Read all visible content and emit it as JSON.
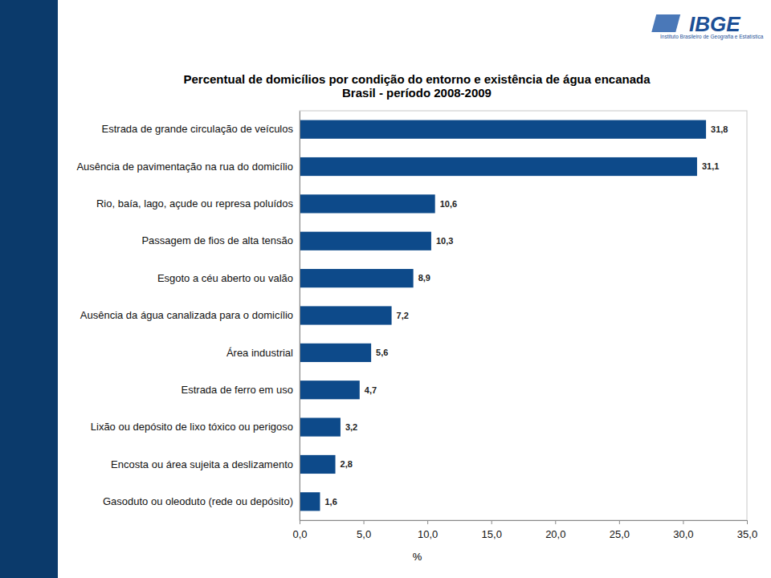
{
  "header": {
    "logo": "IBGE",
    "logo_subtitle": "Instituto Brasileiro de Geografia e Estatística"
  },
  "chart_data": {
    "type": "bar",
    "orientation": "horizontal",
    "title": "Percentual de domicílios por condição do entorno e existência de água encanada",
    "subtitle": "Brasil - período 2008-2009",
    "xlabel": "%",
    "categories": [
      "Estrada de grande circulação de veículos",
      "Ausência de pavimentação na rua do domicílio",
      "Rio, baía, lago, açude ou represa poluídos",
      "Passagem de fios de alta tensão",
      "Esgoto a céu aberto ou valão",
      "Ausência da água canalizada para o domicílio",
      "Área industrial",
      "Estrada de ferro em uso",
      "Lixão ou depósito de lixo tóxico ou perigoso",
      "Encosta ou área sujeita a deslizamento",
      "Gasoduto ou oleoduto (rede ou depósito)"
    ],
    "values": [
      31.8,
      31.1,
      10.6,
      10.3,
      8.9,
      7.2,
      5.6,
      4.7,
      3.2,
      2.8,
      1.6
    ],
    "value_labels": [
      "31,8",
      "31,1",
      "10,6",
      "10,3",
      "8,9",
      "7,2",
      "5,6",
      "4,7",
      "3,2",
      "2,8",
      "1,6"
    ],
    "color": "#0d4a8a",
    "xlim": [
      0,
      35
    ],
    "xticks": [
      {
        "value": 0,
        "label": "0,0"
      },
      {
        "value": 5,
        "label": "5,0"
      },
      {
        "value": 10,
        "label": "10,0"
      },
      {
        "value": 15,
        "label": "15,0"
      },
      {
        "value": 20,
        "label": "20,0"
      },
      {
        "value": 25,
        "label": "25,0"
      },
      {
        "value": 30,
        "label": "30,0"
      },
      {
        "value": 35,
        "label": "35,0"
      }
    ],
    "grid": false,
    "data_labels": true
  }
}
